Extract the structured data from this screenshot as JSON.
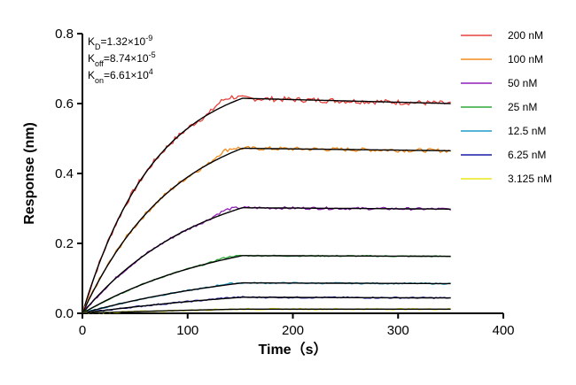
{
  "chart_data": {
    "type": "line",
    "xlabel": "Time（s）",
    "ylabel": "Response (nm)",
    "xlim": [
      0,
      400
    ],
    "ylim": [
      0,
      0.8
    ],
    "x_ticks": [
      0,
      100,
      200,
      300,
      400
    ],
    "y_ticks": [
      0.0,
      0.2,
      0.4,
      0.6,
      0.8
    ],
    "y_tick_labels": [
      "0.0",
      "0.2",
      "0.4",
      "0.6",
      "0.8"
    ],
    "grid": false,
    "legend_placement": "top-right",
    "association_end": 152,
    "dissociation_end": 350,
    "kinetics": {
      "kd": {
        "base": "K",
        "sub": "D",
        "value": "=1.32×10",
        "exp": "-9"
      },
      "koff": {
        "base": "K",
        "sub": "off",
        "value": "=8.74×10",
        "exp": "-5"
      },
      "kon": {
        "base": "K",
        "sub": "on",
        "value": "=6.61×10",
        "exp": "4"
      }
    },
    "series": [
      {
        "name": "200 nM",
        "color": "#e8413c",
        "plateau": 0.615,
        "end_value": 0.6
      },
      {
        "name": "100 nM",
        "color": "#f28c1e",
        "plateau": 0.472,
        "end_value": 0.465
      },
      {
        "name": "50 nM",
        "color": "#8e1fb5",
        "plateau": 0.302,
        "end_value": 0.298
      },
      {
        "name": "25 nM",
        "color": "#2fa83a",
        "plateau": 0.165,
        "end_value": 0.163
      },
      {
        "name": "12.5 nM",
        "color": "#1f9ac7",
        "plateau": 0.087,
        "end_value": 0.085
      },
      {
        "name": "6.25 nM",
        "color": "#1a1aa8",
        "plateau": 0.046,
        "end_value": 0.044
      },
      {
        "name": "3.125 nM",
        "color": "#e8e81a",
        "plateau": 0.012,
        "end_value": 0.012
      }
    ],
    "fit_color": "#000000"
  }
}
